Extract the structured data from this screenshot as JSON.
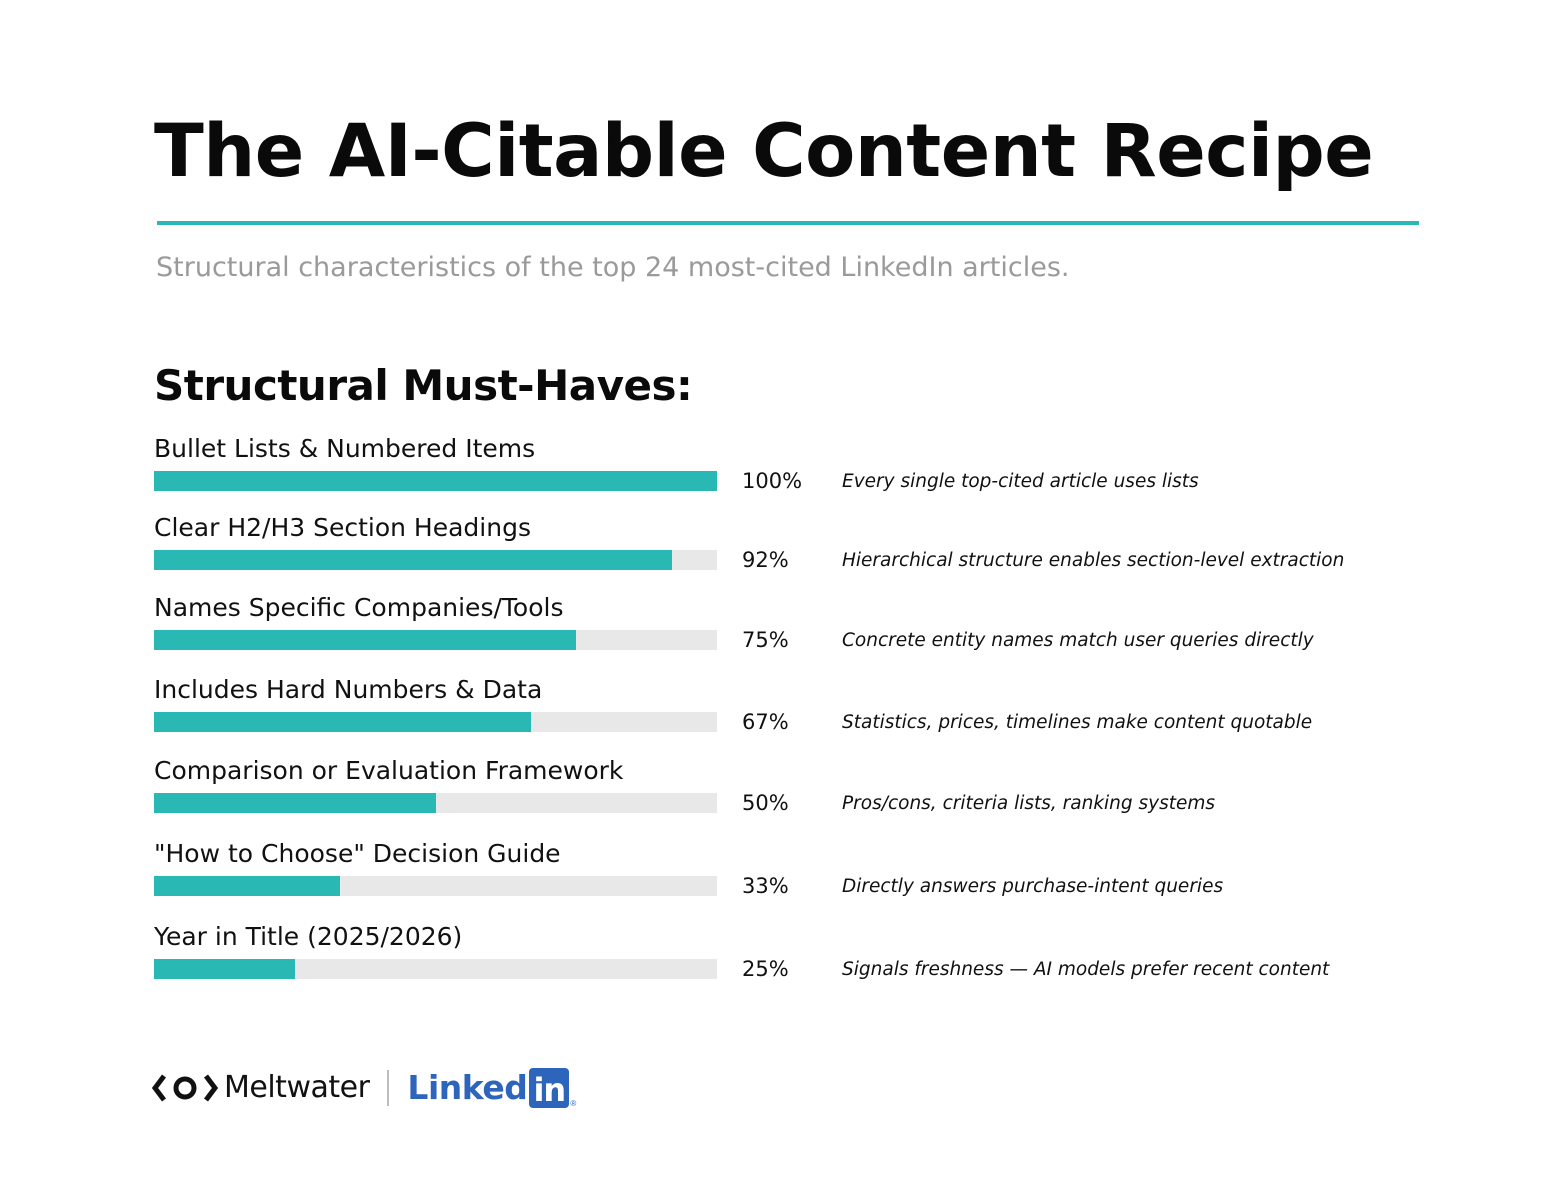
{
  "title": "The AI-Citable Content Recipe",
  "subtitle": "Structural characteristics of the top 24 most-cited LinkedIn articles.",
  "section_title": "Structural Must-Haves:",
  "colors": {
    "accent": "#2ab8b5",
    "track": "#e8e8e8",
    "linkedin": "#2d64bc"
  },
  "chart_data": {
    "type": "bar",
    "orientation": "horizontal",
    "title": "Structural Must-Haves:",
    "xlim": [
      0,
      100
    ],
    "unit": "%",
    "grid": false,
    "categories": [
      "Bullet Lists & Numbered Items",
      "Clear H2/H3 Section Headings",
      "Names Specific Companies/Tools",
      "Includes Hard Numbers & Data",
      "Comparison or Evaluation Framework",
      "\"How to Choose\" Decision Guide",
      "Year in Title (2025/2026)"
    ],
    "values": [
      100,
      92,
      75,
      67,
      50,
      33,
      25
    ],
    "value_labels": [
      "100%",
      "92%",
      "75%",
      "67%",
      "50%",
      "33%",
      "25%"
    ],
    "annotations": [
      "Every single top-cited article uses lists",
      "Hierarchical structure enables section-level extraction",
      "Concrete entity names match user queries directly",
      "Statistics, prices, timelines make content quotable",
      "Pros/cons, criteria lists, ranking systems",
      "Directly answers purchase-intent queries",
      "Signals freshness — AI models prefer recent content"
    ]
  },
  "footer": {
    "meltwater": {
      "icon": "meltwater-logo-icon",
      "label": "Meltwater"
    },
    "linkedin": {
      "word": "Linked",
      "box": "in",
      "reg": "®"
    }
  }
}
